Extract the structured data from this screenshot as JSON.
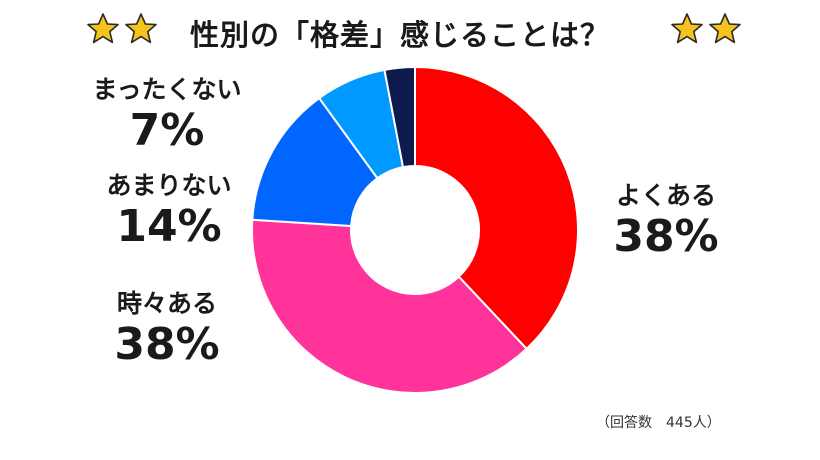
{
  "title": "性別の「格差」感じることは？",
  "decoration": {
    "star_icon": "star-icon",
    "star_color": "#f6c21c",
    "star_stroke": "#2a2a2a"
  },
  "chart_data": {
    "type": "pie",
    "variant": "donut",
    "title": "性別の「格差」感じることは？",
    "unit": "%",
    "slices": [
      {
        "label": "よくある",
        "pct_label": "38%",
        "value": 38,
        "color": "#ff0000"
      },
      {
        "label": "時々ある",
        "pct_label": "38%",
        "value": 38,
        "color": "#ff3399"
      },
      {
        "label": "あまりない",
        "pct_label": "14%",
        "value": 14,
        "color": "#0066ff"
      },
      {
        "label": "まったくない",
        "pct_label": "7%",
        "value": 7,
        "color": "#0099ff"
      },
      {
        "label": "",
        "pct_label": "",
        "value": 3,
        "color": "#0d1a4d"
      }
    ],
    "start_angle_deg": 0,
    "direction": "clockwise"
  },
  "note": "（回答数　445人）"
}
